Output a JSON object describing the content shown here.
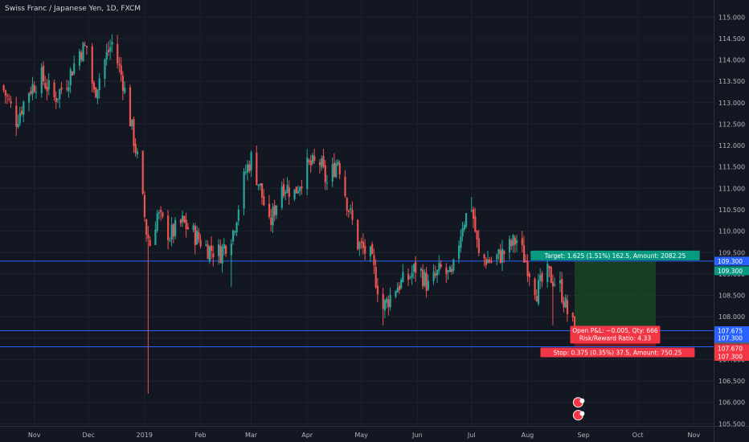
{
  "header": {
    "title": "Swiss Franc / Japanese Yen, 1D, FXCM"
  },
  "colors": {
    "background": "#131722",
    "up": "#26a69a",
    "down": "#ef5350",
    "hline": "#2962ff",
    "target_zone": "#1b5e20",
    "stop_zone": "#b71c1c",
    "target_label": "#089981",
    "stop_label": "#f23645"
  },
  "chart_data": {
    "type": "candlestick",
    "ylim": [
      105.45,
      115.4
    ],
    "x_domain": [
      "2018-10-13",
      "2019-11-12"
    ],
    "y_ticks": [
      115.5,
      115.0,
      114.5,
      114.0,
      113.5,
      113.0,
      112.5,
      112.0,
      111.5,
      111.0,
      110.5,
      110.0,
      109.5,
      109.0,
      108.5,
      108.0,
      107.5,
      107.0,
      106.5,
      106.0,
      105.5
    ],
    "y_tick_labels": [
      "115.500",
      "115.000",
      "114.500",
      "114.000",
      "113.500",
      "113.000",
      "112.500",
      "112.000",
      "111.500",
      "111.000",
      "110.500",
      "110.000",
      "109.500",
      "109.000",
      "108.500",
      "108.000",
      "107.500",
      "107.000",
      "106.500",
      "106.000",
      "105.500"
    ],
    "x_ticks": [
      {
        "date": "2018-11-01",
        "label": "Nov"
      },
      {
        "date": "2018-12-01",
        "label": "Dec"
      },
      {
        "date": "2019-01-01",
        "label": "2019"
      },
      {
        "date": "2019-02-01",
        "label": "Feb"
      },
      {
        "date": "2019-03-01",
        "label": "Mar"
      },
      {
        "date": "2019-04-01",
        "label": "Apr"
      },
      {
        "date": "2019-05-01",
        "label": "May"
      },
      {
        "date": "2019-06-01",
        "label": "Jun"
      },
      {
        "date": "2019-07-01",
        "label": "Jul"
      },
      {
        "date": "2019-08-01",
        "label": "Aug"
      },
      {
        "date": "2019-09-01",
        "label": "Sep"
      },
      {
        "date": "2019-10-01",
        "label": "Oct"
      },
      {
        "date": "2019-11-01",
        "label": "Nov"
      }
    ],
    "anchors": [
      {
        "date": "2018-10-14",
        "close": 113.4
      },
      {
        "date": "2018-10-22",
        "close": 112.6
      },
      {
        "date": "2018-10-29",
        "close": 113.3
      },
      {
        "date": "2018-11-05",
        "close": 113.6
      },
      {
        "date": "2018-11-12",
        "close": 113.1
      },
      {
        "date": "2018-11-19",
        "close": 113.5
      },
      {
        "date": "2018-11-26",
        "close": 114.2
      },
      {
        "date": "2018-11-30",
        "close": 114.3
      },
      {
        "date": "2018-12-04",
        "close": 113.2
      },
      {
        "date": "2018-12-10",
        "close": 114.0
      },
      {
        "date": "2018-12-14",
        "close": 114.4
      },
      {
        "date": "2018-12-20",
        "close": 113.5
      },
      {
        "date": "2018-12-24",
        "close": 112.6
      },
      {
        "date": "2018-12-28",
        "close": 111.7
      },
      {
        "date": "2019-01-02",
        "close": 110.0
      },
      {
        "date": "2019-01-04",
        "close": 109.7
      },
      {
        "date": "2019-01-08",
        "close": 110.4
      },
      {
        "date": "2019-01-15",
        "close": 109.9
      },
      {
        "date": "2019-01-22",
        "close": 110.2
      },
      {
        "date": "2019-01-29",
        "close": 109.9
      },
      {
        "date": "2019-02-05",
        "close": 109.6
      },
      {
        "date": "2019-02-12",
        "close": 109.5
      },
      {
        "date": "2019-02-19",
        "close": 110.0
      },
      {
        "date": "2019-02-26",
        "close": 111.4
      },
      {
        "date": "2019-03-01",
        "close": 111.7
      },
      {
        "date": "2019-03-06",
        "close": 111.0
      },
      {
        "date": "2019-03-11",
        "close": 110.1
      },
      {
        "date": "2019-03-18",
        "close": 111.1
      },
      {
        "date": "2019-03-25",
        "close": 110.9
      },
      {
        "date": "2019-04-01",
        "close": 111.5
      },
      {
        "date": "2019-04-08",
        "close": 111.6
      },
      {
        "date": "2019-04-12",
        "close": 111.1
      },
      {
        "date": "2019-04-18",
        "close": 111.7
      },
      {
        "date": "2019-04-23",
        "close": 110.7
      },
      {
        "date": "2019-04-29",
        "close": 109.7
      },
      {
        "date": "2019-05-06",
        "close": 109.4
      },
      {
        "date": "2019-05-13",
        "close": 108.2
      },
      {
        "date": "2019-05-20",
        "close": 108.7
      },
      {
        "date": "2019-05-27",
        "close": 108.9
      },
      {
        "date": "2019-06-01",
        "close": 109.2
      },
      {
        "date": "2019-06-07",
        "close": 108.7
      },
      {
        "date": "2019-06-14",
        "close": 109.1
      },
      {
        "date": "2019-06-20",
        "close": 108.9
      },
      {
        "date": "2019-06-26",
        "close": 110.2
      },
      {
        "date": "2019-07-01",
        "close": 110.6
      },
      {
        "date": "2019-07-05",
        "close": 109.4
      },
      {
        "date": "2019-07-12",
        "close": 109.3
      },
      {
        "date": "2019-07-19",
        "close": 109.5
      },
      {
        "date": "2019-07-26",
        "close": 109.8
      },
      {
        "date": "2019-08-01",
        "close": 109.2
      },
      {
        "date": "2019-08-06",
        "close": 108.6
      },
      {
        "date": "2019-08-12",
        "close": 109.0
      },
      {
        "date": "2019-08-19",
        "close": 108.7
      },
      {
        "date": "2019-08-23",
        "close": 108.1
      },
      {
        "date": "2019-08-27",
        "close": 107.68
      }
    ],
    "spikes": [
      {
        "date": "2019-01-03",
        "low": 106.2
      },
      {
        "date": "2018-12-14",
        "high": 114.6
      },
      {
        "date": "2019-02-18",
        "low": 108.7
      },
      {
        "date": "2019-05-13",
        "low": 107.8
      },
      {
        "date": "2019-07-01",
        "high": 110.8
      },
      {
        "date": "2019-08-15",
        "low": 107.8
      }
    ],
    "seed": 7
  },
  "position": {
    "entry": 107.675,
    "target": 109.3,
    "stop": 107.3,
    "start_date": "2019-08-27",
    "end_date": "2019-10-11",
    "target_text": "Target: 1.625 (1.51%) 162.5, Amount: 2082.25",
    "stop_text": "Stop: 0.375 (0.35%) 37.5, Amount: 750.25",
    "pnl_text": "Open P&L: −0.005, Qty: 666",
    "rr_text": "Risk/Reward Ratio: 4.33"
  },
  "price_labels": [
    {
      "price": 109.3,
      "text": "109.300",
      "color": "#2962ff"
    },
    {
      "price": 109.3,
      "text": "109.300",
      "color": "#089981",
      "offset": 12
    },
    {
      "price": 107.675,
      "text": "107.675",
      "color": "#2962ff"
    },
    {
      "price": 107.675,
      "text": "107.675",
      "color": "#5d606b",
      "offset": 11
    },
    {
      "price": 107.3,
      "text": "107.300",
      "color": "#2962ff",
      "offset": -11
    },
    {
      "price": 107.3,
      "text": "107.300",
      "color": "#f23645",
      "offset": 12
    },
    {
      "price": 107.67,
      "text": "107.670",
      "color": "#f23645",
      "offset": 22
    }
  ],
  "hlines": [
    109.3,
    107.675,
    107.3
  ],
  "markers": [
    {
      "date": "2019-08-29",
      "price": 106.0
    },
    {
      "date": "2019-08-29",
      "price": 105.7
    }
  ]
}
